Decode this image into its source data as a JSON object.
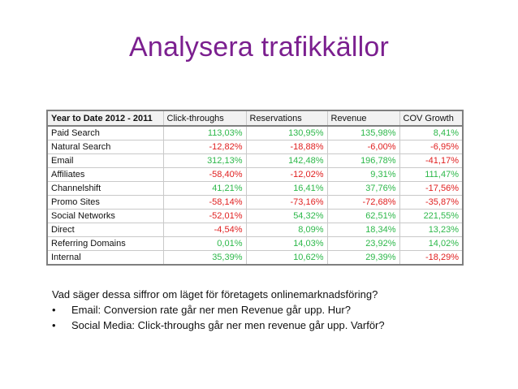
{
  "title": "Analysera trafikkällor",
  "table": {
    "headers": [
      "Year to Date 2012 - 2011",
      "Click-throughs",
      "Reservations",
      "Revenue",
      "COV Growth"
    ],
    "rows": [
      {
        "label": "Paid Search",
        "values": [
          "113,03%",
          "130,95%",
          "135,98%",
          "8,41%"
        ],
        "signs": [
          "pos",
          "pos",
          "pos",
          "pos"
        ]
      },
      {
        "label": "Natural Search",
        "values": [
          "-12,82%",
          "-18,88%",
          "-6,00%",
          "-6,95%"
        ],
        "signs": [
          "neg",
          "neg",
          "neg",
          "neg"
        ]
      },
      {
        "label": "Email",
        "values": [
          "312,13%",
          "142,48%",
          "196,78%",
          "-41,17%"
        ],
        "signs": [
          "pos",
          "pos",
          "pos",
          "neg"
        ]
      },
      {
        "label": "Affiliates",
        "values": [
          "-58,40%",
          "-12,02%",
          "9,31%",
          "111,47%"
        ],
        "signs": [
          "neg",
          "neg",
          "pos",
          "pos"
        ]
      },
      {
        "label": "Channelshift",
        "values": [
          "41,21%",
          "16,41%",
          "37,76%",
          "-17,56%"
        ],
        "signs": [
          "pos",
          "pos",
          "pos",
          "neg"
        ]
      },
      {
        "label": "Promo Sites",
        "values": [
          "-58,14%",
          "-73,16%",
          "-72,68%",
          "-35,87%"
        ],
        "signs": [
          "neg",
          "neg",
          "neg",
          "neg"
        ]
      },
      {
        "label": "Social Networks",
        "values": [
          "-52,01%",
          "54,32%",
          "62,51%",
          "221,55%"
        ],
        "signs": [
          "neg",
          "pos",
          "pos",
          "pos"
        ]
      },
      {
        "label": "Direct",
        "values": [
          "-4,54%",
          "8,09%",
          "18,34%",
          "13,23%"
        ],
        "signs": [
          "neg",
          "pos",
          "pos",
          "pos"
        ]
      },
      {
        "label": "Referring Domains",
        "values": [
          "0,01%",
          "14,03%",
          "23,92%",
          "14,02%"
        ],
        "signs": [
          "pos",
          "pos",
          "pos",
          "pos"
        ]
      },
      {
        "label": "Internal",
        "values": [
          "35,39%",
          "10,62%",
          "29,39%",
          "-18,29%"
        ],
        "signs": [
          "pos",
          "pos",
          "pos",
          "neg"
        ]
      }
    ]
  },
  "body": {
    "question": "Vad säger dessa siffror om läget för företagets onlinemarknadsföring?",
    "bullets": [
      "Email: Conversion rate går ner men Revenue går upp. Hur?",
      "Social Media: Click-throughs går ner men revenue går upp. Varför?"
    ],
    "bullet_symbol": "•"
  },
  "colors": {
    "title": "#7b1f8f",
    "positive": "#2db84a",
    "negative": "#e02020"
  }
}
